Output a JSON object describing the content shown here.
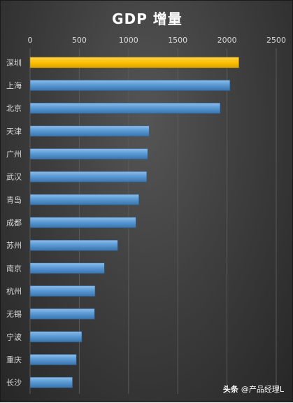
{
  "chart_data": {
    "type": "bar",
    "orientation": "horizontal",
    "title": "GDP 增量",
    "categories": [
      "深圳",
      "上海",
      "北京",
      "天津",
      "广州",
      "武汉",
      "青岛",
      "成都",
      "苏州",
      "南京",
      "杭州",
      "无锡",
      "宁波",
      "重庆",
      "长沙"
    ],
    "values": [
      2120,
      2030,
      1930,
      1210,
      1195,
      1185,
      1105,
      1075,
      890,
      755,
      660,
      655,
      525,
      470,
      430
    ],
    "xlim": [
      0,
      2500
    ],
    "xticks": [
      0,
      500,
      1000,
      1500,
      2000,
      2500
    ],
    "xaxis_position": "top",
    "grid": true,
    "legend": false,
    "colors": {
      "highlight": "#ffc000",
      "bar": "#5b9bd5",
      "background": "#3f3f3f",
      "grid": "#5a5a5a"
    }
  },
  "watermark": {
    "brand": "头条",
    "handle": "@产品经理L"
  }
}
